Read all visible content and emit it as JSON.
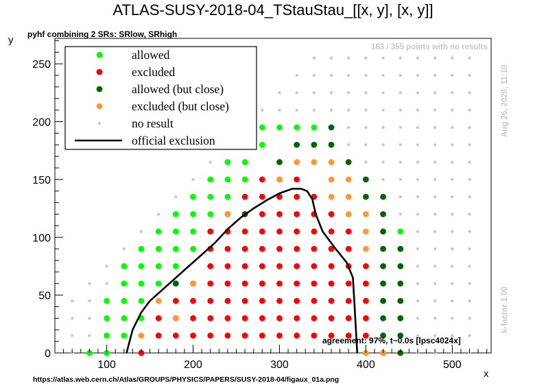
{
  "chart_data": {
    "type": "scatter",
    "title": "ATLAS-SUSY-2018-04_TStauStau_[[x, y], [x, y]]",
    "subtitle": "pyhf combining 2 SRs: SRlow, SRhigh",
    "xlabel": "x",
    "ylabel": "y",
    "xlim": [
      40,
      545
    ],
    "ylim": [
      0,
      272
    ],
    "xticks": [
      100,
      200,
      300,
      400,
      500
    ],
    "yticks": [
      0,
      50,
      100,
      150,
      200,
      250
    ],
    "grid": false,
    "legend_position": "top-left",
    "legend": [
      {
        "label": "allowed",
        "category": "allowed"
      },
      {
        "label": "excluded",
        "category": "excluded"
      },
      {
        "label": "allowed (but close)",
        "category": "close_allowed"
      },
      {
        "label": "excluded (but close)",
        "category": "close_excluded"
      },
      {
        "label": "no result",
        "category": "noresult"
      },
      {
        "label": "official exclusion",
        "category": "line"
      }
    ],
    "colors": {
      "allowed": "#00ff00",
      "excluded": "#ff0000",
      "close_allowed": "#006400",
      "close_excluded": "#ff9933",
      "noresult": "#c8c8c8",
      "line": "#000000"
    },
    "series": {
      "allowed": [
        [
          80,
          0
        ],
        [
          100,
          0
        ],
        [
          100,
          15
        ],
        [
          100,
          30
        ],
        [
          100,
          45
        ],
        [
          120,
          15
        ],
        [
          120,
          30
        ],
        [
          120,
          45
        ],
        [
          120,
          60
        ],
        [
          120,
          75
        ],
        [
          140,
          30
        ],
        [
          140,
          45
        ],
        [
          140,
          60
        ],
        [
          140,
          75
        ],
        [
          140,
          90
        ],
        [
          160,
          60
        ],
        [
          160,
          75
        ],
        [
          160,
          90
        ],
        [
          160,
          105
        ],
        [
          180,
          75
        ],
        [
          180,
          90
        ],
        [
          180,
          105
        ],
        [
          180,
          120
        ],
        [
          200,
          90
        ],
        [
          200,
          105
        ],
        [
          200,
          120
        ],
        [
          200,
          135
        ],
        [
          220,
          120
        ],
        [
          220,
          135
        ],
        [
          220,
          150
        ],
        [
          240,
          135
        ],
        [
          240,
          150
        ],
        [
          240,
          165
        ],
        [
          260,
          150
        ],
        [
          260,
          165
        ],
        [
          260,
          180
        ],
        [
          280,
          180
        ],
        [
          280,
          195
        ],
        [
          300,
          195
        ],
        [
          320,
          195
        ],
        [
          340,
          195
        ],
        [
          440,
          105
        ]
      ],
      "excluded": [
        [
          140,
          0
        ],
        [
          160,
          15
        ],
        [
          160,
          30
        ],
        [
          180,
          15
        ],
        [
          180,
          30
        ],
        [
          180,
          45
        ],
        [
          200,
          15
        ],
        [
          200,
          30
        ],
        [
          200,
          45
        ],
        [
          200,
          60
        ],
        [
          220,
          15
        ],
        [
          220,
          30
        ],
        [
          220,
          45
        ],
        [
          220,
          60
        ],
        [
          220,
          75
        ],
        [
          220,
          90
        ],
        [
          220,
          105
        ],
        [
          240,
          15
        ],
        [
          240,
          30
        ],
        [
          240,
          45
        ],
        [
          240,
          60
        ],
        [
          240,
          75
        ],
        [
          240,
          90
        ],
        [
          240,
          105
        ],
        [
          240,
          120
        ],
        [
          260,
          15
        ],
        [
          260,
          30
        ],
        [
          260,
          45
        ],
        [
          260,
          60
        ],
        [
          260,
          75
        ],
        [
          260,
          90
        ],
        [
          260,
          105
        ],
        [
          260,
          120
        ],
        [
          260,
          135
        ],
        [
          280,
          15
        ],
        [
          280,
          30
        ],
        [
          280,
          45
        ],
        [
          280,
          60
        ],
        [
          280,
          75
        ],
        [
          280,
          90
        ],
        [
          280,
          105
        ],
        [
          280,
          120
        ],
        [
          280,
          135
        ],
        [
          280,
          150
        ],
        [
          300,
          15
        ],
        [
          300,
          30
        ],
        [
          300,
          45
        ],
        [
          300,
          60
        ],
        [
          300,
          75
        ],
        [
          300,
          90
        ],
        [
          300,
          105
        ],
        [
          300,
          120
        ],
        [
          300,
          135
        ],
        [
          300,
          150
        ],
        [
          320,
          15
        ],
        [
          320,
          30
        ],
        [
          320,
          45
        ],
        [
          320,
          60
        ],
        [
          320,
          75
        ],
        [
          320,
          90
        ],
        [
          320,
          105
        ],
        [
          320,
          120
        ],
        [
          320,
          135
        ],
        [
          320,
          150
        ],
        [
          340,
          15
        ],
        [
          340,
          30
        ],
        [
          340,
          45
        ],
        [
          340,
          60
        ],
        [
          340,
          75
        ],
        [
          340,
          90
        ],
        [
          340,
          105
        ],
        [
          340,
          120
        ],
        [
          340,
          135
        ],
        [
          360,
          15
        ],
        [
          360,
          30
        ],
        [
          360,
          45
        ],
        [
          360,
          60
        ],
        [
          360,
          75
        ],
        [
          360,
          90
        ],
        [
          360,
          105
        ],
        [
          360,
          120
        ],
        [
          380,
          15
        ],
        [
          380,
          30
        ],
        [
          380,
          45
        ],
        [
          380,
          60
        ],
        [
          380,
          75
        ],
        [
          380,
          90
        ],
        [
          380,
          105
        ],
        [
          400,
          15
        ],
        [
          400,
          30
        ],
        [
          400,
          45
        ],
        [
          400,
          60
        ],
        [
          400,
          75
        ],
        [
          420,
          0
        ]
      ],
      "close_allowed": [
        [
          180,
          60
        ],
        [
          240,
          180
        ],
        [
          260,
          195
        ],
        [
          300,
          165
        ],
        [
          320,
          180
        ],
        [
          340,
          180
        ],
        [
          360,
          195
        ],
        [
          360,
          180
        ],
        [
          380,
          165
        ],
        [
          400,
          150
        ],
        [
          400,
          135
        ],
        [
          420,
          135
        ],
        [
          420,
          120
        ],
        [
          420,
          105
        ],
        [
          420,
          90
        ],
        [
          420,
          75
        ],
        [
          420,
          60
        ],
        [
          420,
          45
        ],
        [
          420,
          30
        ],
        [
          420,
          15
        ],
        [
          440,
          90
        ],
        [
          440,
          75
        ],
        [
          440,
          60
        ],
        [
          440,
          45
        ],
        [
          440,
          30
        ],
        [
          440,
          15
        ],
        [
          440,
          0
        ],
        [
          260,
          120
        ]
      ],
      "close_excluded": [
        [
          160,
          45
        ],
        [
          180,
          30
        ],
        [
          200,
          60
        ],
        [
          240,
          120
        ],
        [
          300,
          150
        ],
        [
          320,
          165
        ],
        [
          340,
          165
        ],
        [
          360,
          165
        ],
        [
          360,
          150
        ],
        [
          360,
          135
        ],
        [
          380,
          150
        ],
        [
          380,
          135
        ],
        [
          380,
          120
        ],
        [
          400,
          120
        ],
        [
          400,
          105
        ],
        [
          400,
          90
        ],
        [
          400,
          0
        ],
        [
          420,
          0
        ],
        [
          140,
          15
        ]
      ],
      "noresult_rows": [
        {
          "y": 0,
          "x_from": 60,
          "x_to": 520,
          "skip_from": 80,
          "skip_to": 440
        },
        {
          "y": 15,
          "x_from": 60,
          "x_to": 520,
          "skip_from": 100,
          "skip_to": 440
        },
        {
          "y": 30,
          "x_from": 60,
          "x_to": 520,
          "skip_from": 100,
          "skip_to": 440
        },
        {
          "y": 45,
          "x_from": 60,
          "x_to": 520,
          "skip_from": 100,
          "skip_to": 440
        },
        {
          "y": 60,
          "x_from": 80,
          "x_to": 520,
          "skip_from": 120,
          "skip_to": 440
        },
        {
          "y": 75,
          "x_from": 100,
          "x_to": 520,
          "skip_from": 120,
          "skip_to": 440
        },
        {
          "y": 90,
          "x_from": 120,
          "x_to": 520,
          "skip_from": 140,
          "skip_to": 440
        },
        {
          "y": 105,
          "x_from": 140,
          "x_to": 520,
          "skip_from": 160,
          "skip_to": 440
        },
        {
          "y": 120,
          "x_from": 160,
          "x_to": 520,
          "skip_from": 180,
          "skip_to": 420
        },
        {
          "y": 135,
          "x_from": 180,
          "x_to": 520,
          "skip_from": 200,
          "skip_to": 420
        },
        {
          "y": 150,
          "x_from": 200,
          "x_to": 520,
          "skip_from": 220,
          "skip_to": 400
        },
        {
          "y": 165,
          "x_from": 220,
          "x_to": 520,
          "skip_from": 240,
          "skip_to": 380
        },
        {
          "y": 180,
          "x_from": 240,
          "x_to": 520,
          "skip_from": 260,
          "skip_to": 360
        },
        {
          "y": 195,
          "x_from": 260,
          "x_to": 520,
          "skip_from": 260,
          "skip_to": 360
        },
        {
          "y": 210,
          "x_from": 280,
          "x_to": 520,
          "skip_from": 0,
          "skip_to": 0
        },
        {
          "y": 225,
          "x_from": 300,
          "x_to": 520,
          "skip_from": 0,
          "skip_to": 0
        },
        {
          "y": 240,
          "x_from": 320,
          "x_to": 520,
          "skip_from": 0,
          "skip_to": 0
        },
        {
          "y": 255,
          "x_from": 340,
          "x_to": 520,
          "skip_from": 0,
          "skip_to": 0
        }
      ],
      "official_exclusion": [
        [
          123,
          0
        ],
        [
          130,
          20
        ],
        [
          140,
          35
        ],
        [
          150,
          45
        ],
        [
          165,
          55
        ],
        [
          180,
          65
        ],
        [
          195,
          75
        ],
        [
          210,
          85
        ],
        [
          225,
          95
        ],
        [
          240,
          107
        ],
        [
          255,
          117
        ],
        [
          270,
          125
        ],
        [
          285,
          132
        ],
        [
          300,
          138
        ],
        [
          315,
          142
        ],
        [
          325,
          142
        ],
        [
          332,
          140
        ],
        [
          338,
          133
        ],
        [
          342,
          120
        ],
        [
          350,
          105
        ],
        [
          365,
          90
        ],
        [
          378,
          78
        ],
        [
          385,
          65
        ],
        [
          387,
          40
        ],
        [
          390,
          0
        ]
      ]
    }
  },
  "annotations": {
    "counts": "163 / 355 points with no results",
    "date": "Aug 26, 2020, 11:10",
    "kfactor": "k-factor 1.00",
    "agreement": "agreement: 97%, t~0.0s [lpsc4024x]",
    "url": "https://atlas.web.cern.ch/Atlas/GROUPS/PHYSICS/PAPERS/SUSY-2018-04/figaux_01a.png"
  }
}
